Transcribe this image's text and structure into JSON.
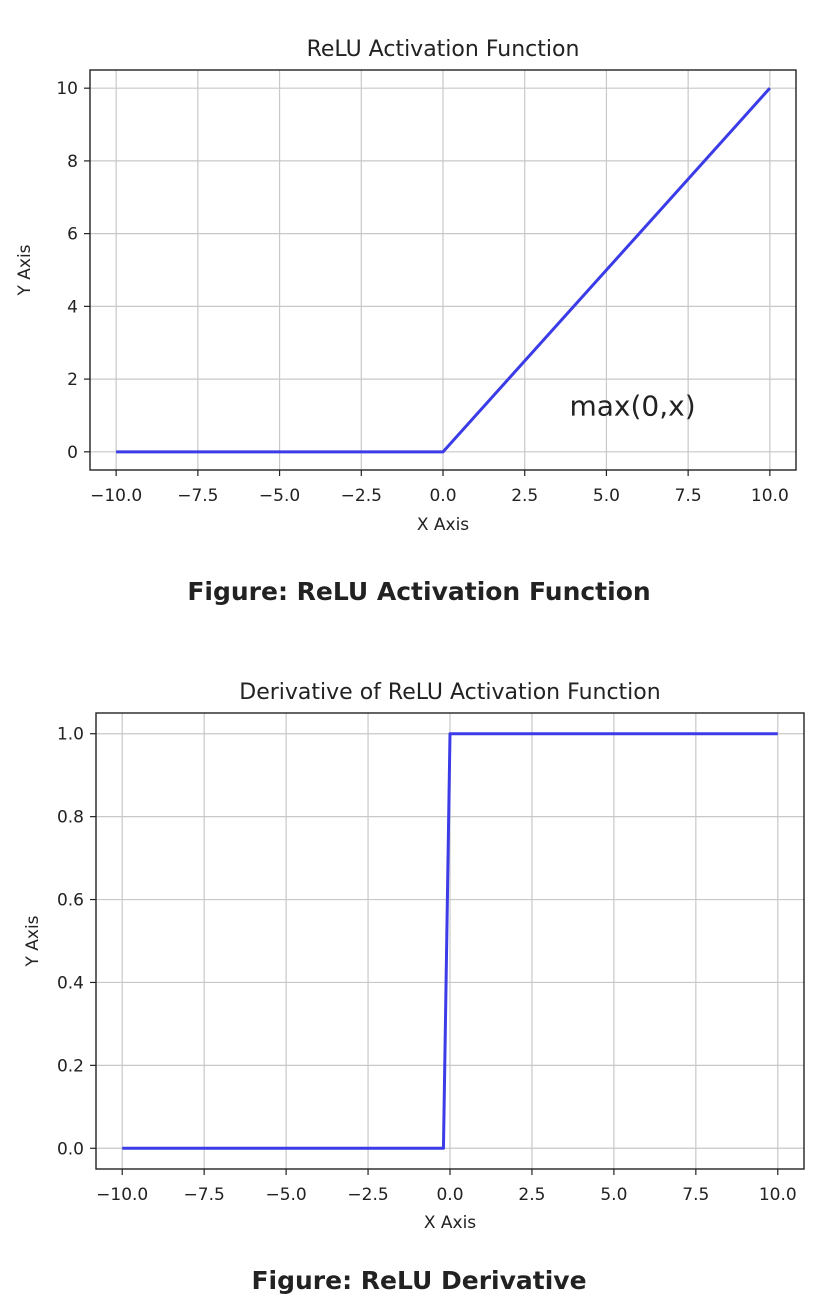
{
  "chart_data": [
    {
      "type": "line",
      "title": "ReLU Activation Function",
      "xlabel": "X Axis",
      "ylabel": "Y Axis",
      "xlim": [
        -10.8,
        10.8
      ],
      "ylim": [
        -0.5,
        10.5
      ],
      "xticks": [
        -10.0,
        -7.5,
        -5.0,
        -2.5,
        0.0,
        2.5,
        5.0,
        7.5,
        10.0
      ],
      "xtick_labels": [
        "−10.0",
        "−7.5",
        "−5.0",
        "−2.5",
        "0.0",
        "2.5",
        "5.0",
        "7.5",
        "10.0"
      ],
      "yticks": [
        0,
        2,
        4,
        6,
        8,
        10
      ],
      "ytick_labels": [
        "0",
        "2",
        "4",
        "6",
        "8",
        "10"
      ],
      "grid": true,
      "series": [
        {
          "x": [
            -10,
            0,
            10
          ],
          "y": [
            0,
            0,
            10
          ],
          "color": "#3b3be8"
        }
      ],
      "annotations": [
        {
          "text": "max(0,x)",
          "x": 5.8,
          "y": 1.0
        }
      ]
    },
    {
      "type": "line",
      "title": "Derivative of ReLU Activation Function",
      "xlabel": "X Axis",
      "ylabel": "Y Axis",
      "xlim": [
        -10.8,
        10.8
      ],
      "ylim": [
        -0.05,
        1.05
      ],
      "xticks": [
        -10.0,
        -7.5,
        -5.0,
        -2.5,
        0.0,
        2.5,
        5.0,
        7.5,
        10.0
      ],
      "xtick_labels": [
        "−10.0",
        "−7.5",
        "−5.0",
        "−2.5",
        "0.0",
        "2.5",
        "5.0",
        "7.5",
        "10.0"
      ],
      "yticks": [
        0.0,
        0.2,
        0.4,
        0.6,
        0.8,
        1.0
      ],
      "ytick_labels": [
        "0.0",
        "0.2",
        "0.4",
        "0.6",
        "0.8",
        "1.0"
      ],
      "grid": true,
      "series": [
        {
          "x": [
            -10,
            -0.2,
            0.0,
            10
          ],
          "y": [
            0,
            0,
            1,
            1
          ],
          "color": "#3b3be8"
        }
      ],
      "annotations": []
    }
  ],
  "captions": {
    "relu": "Figure: ReLU Activation Function",
    "derivative": "Figure: ReLU Derivative"
  }
}
